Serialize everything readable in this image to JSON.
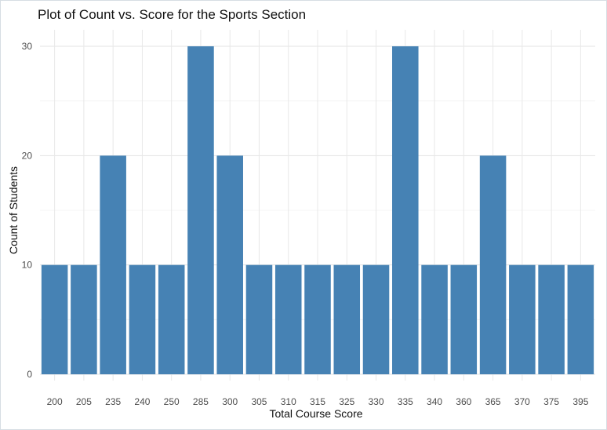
{
  "chart_data": {
    "type": "bar",
    "title": "Plot of Count vs. Score for the Sports Section",
    "xlabel": "Total Course Score",
    "ylabel": "Count of Students",
    "categories": [
      "200",
      "205",
      "235",
      "240",
      "250",
      "285",
      "300",
      "305",
      "310",
      "315",
      "325",
      "330",
      "335",
      "340",
      "360",
      "365",
      "370",
      "375",
      "395"
    ],
    "values": [
      10,
      10,
      20,
      10,
      10,
      30,
      20,
      10,
      10,
      10,
      10,
      10,
      30,
      10,
      10,
      20,
      10,
      10,
      10
    ],
    "ylim": [
      0,
      30
    ],
    "yticks": [
      "0",
      "10",
      "20",
      "30"
    ],
    "grid": true,
    "legend": "none",
    "bar_color": "#4682B4"
  }
}
